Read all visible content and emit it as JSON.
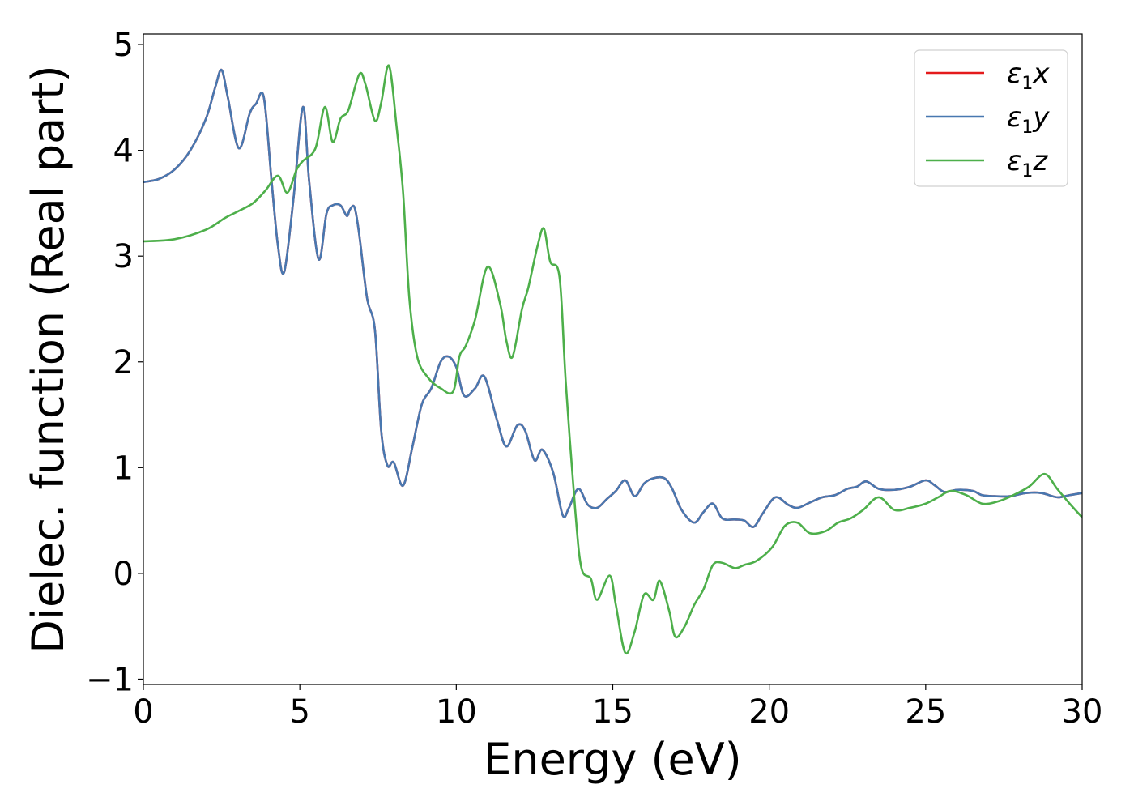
{
  "chart_data": {
    "type": "line",
    "title": "",
    "xlabel": "Energy (eV)",
    "ylabel": "Dielec. function (Real part)",
    "xlim": [
      0,
      30
    ],
    "ylim": [
      -1.05,
      5.1
    ],
    "xticks": [
      0,
      5,
      10,
      15,
      20,
      25,
      30
    ],
    "xtick_labels": [
      "0",
      "5",
      "10",
      "15",
      "20",
      "25",
      "30"
    ],
    "yticks": [
      -1,
      0,
      1,
      2,
      3,
      4,
      5
    ],
    "ytick_labels": [
      "−1",
      "0",
      "1",
      "2",
      "3",
      "4",
      "5"
    ],
    "grid": false,
    "legend_position": "top-right",
    "series": [
      {
        "name": "ε1x",
        "name_parts": [
          "ε",
          "1",
          "x"
        ],
        "color": "#e41a1c",
        "x": [
          0,
          0.5,
          1,
          1.5,
          2,
          2.3,
          2.5,
          2.7,
          3.05,
          3.4,
          3.6,
          3.85,
          4.1,
          4.3,
          4.5,
          4.8,
          5.1,
          5.3,
          5.6,
          5.85,
          6.05,
          6.3,
          6.5,
          6.6,
          6.75,
          6.9,
          7.15,
          7.4,
          7.6,
          7.8,
          8.0,
          8.3,
          8.6,
          8.9,
          9.2,
          9.5,
          9.75,
          10.0,
          10.25,
          10.6,
          10.9,
          11.3,
          11.6,
          11.95,
          12.2,
          12.5,
          12.75,
          13.1,
          13.4,
          13.6,
          13.9,
          14.2,
          14.5,
          14.8,
          15.1,
          15.4,
          15.7,
          16.0,
          16.3,
          16.65,
          16.9,
          17.2,
          17.6,
          17.9,
          18.2,
          18.5,
          18.9,
          19.2,
          19.5,
          19.8,
          20.2,
          20.6,
          20.9,
          21.3,
          21.7,
          22.1,
          22.5,
          22.8,
          23.1,
          23.5,
          24.0,
          24.5,
          25.0,
          25.3,
          25.6,
          26.0,
          26.5,
          26.8,
          27.2,
          27.7,
          28.2,
          28.7,
          29.2,
          29.6,
          30.0
        ],
        "values": [
          3.7,
          3.73,
          3.82,
          4.0,
          4.3,
          4.6,
          4.76,
          4.5,
          4.02,
          4.35,
          4.44,
          4.5,
          3.7,
          3.1,
          2.85,
          3.55,
          4.41,
          3.7,
          2.97,
          3.4,
          3.48,
          3.48,
          3.38,
          3.44,
          3.46,
          3.2,
          2.6,
          2.3,
          1.35,
          1.02,
          1.05,
          0.83,
          1.2,
          1.6,
          1.75,
          2.0,
          2.05,
          1.95,
          1.68,
          1.75,
          1.86,
          1.45,
          1.2,
          1.4,
          1.35,
          1.07,
          1.17,
          0.95,
          0.55,
          0.62,
          0.8,
          0.65,
          0.62,
          0.7,
          0.78,
          0.88,
          0.73,
          0.85,
          0.9,
          0.9,
          0.8,
          0.6,
          0.48,
          0.58,
          0.66,
          0.52,
          0.51,
          0.5,
          0.44,
          0.57,
          0.72,
          0.65,
          0.62,
          0.67,
          0.72,
          0.74,
          0.8,
          0.82,
          0.87,
          0.8,
          0.79,
          0.82,
          0.88,
          0.83,
          0.77,
          0.79,
          0.78,
          0.74,
          0.73,
          0.73,
          0.76,
          0.76,
          0.72,
          0.74,
          0.76
        ]
      },
      {
        "name": "ε1y",
        "name_parts": [
          "ε",
          "1",
          "y"
        ],
        "color": "#4878b0",
        "x": [
          0,
          0.5,
          1,
          1.5,
          2,
          2.3,
          2.5,
          2.7,
          3.05,
          3.4,
          3.6,
          3.85,
          4.1,
          4.3,
          4.5,
          4.8,
          5.1,
          5.3,
          5.6,
          5.85,
          6.05,
          6.3,
          6.5,
          6.6,
          6.75,
          6.9,
          7.15,
          7.4,
          7.6,
          7.8,
          8.0,
          8.3,
          8.6,
          8.9,
          9.2,
          9.5,
          9.75,
          10.0,
          10.25,
          10.6,
          10.9,
          11.3,
          11.6,
          11.95,
          12.2,
          12.5,
          12.75,
          13.1,
          13.4,
          13.6,
          13.9,
          14.2,
          14.5,
          14.8,
          15.1,
          15.4,
          15.7,
          16.0,
          16.3,
          16.65,
          16.9,
          17.2,
          17.6,
          17.9,
          18.2,
          18.5,
          18.9,
          19.2,
          19.5,
          19.8,
          20.2,
          20.6,
          20.9,
          21.3,
          21.7,
          22.1,
          22.5,
          22.8,
          23.1,
          23.5,
          24.0,
          24.5,
          25.0,
          25.3,
          25.6,
          26.0,
          26.5,
          26.8,
          27.2,
          27.7,
          28.2,
          28.7,
          29.2,
          29.6,
          30.0
        ],
        "values": [
          3.7,
          3.73,
          3.82,
          4.0,
          4.3,
          4.6,
          4.76,
          4.5,
          4.02,
          4.35,
          4.44,
          4.5,
          3.7,
          3.1,
          2.85,
          3.55,
          4.41,
          3.7,
          2.97,
          3.4,
          3.48,
          3.48,
          3.38,
          3.44,
          3.46,
          3.2,
          2.6,
          2.3,
          1.35,
          1.02,
          1.05,
          0.83,
          1.2,
          1.6,
          1.75,
          2.0,
          2.05,
          1.95,
          1.68,
          1.75,
          1.86,
          1.45,
          1.2,
          1.4,
          1.35,
          1.07,
          1.17,
          0.95,
          0.55,
          0.62,
          0.8,
          0.65,
          0.62,
          0.7,
          0.78,
          0.88,
          0.73,
          0.85,
          0.9,
          0.9,
          0.8,
          0.6,
          0.48,
          0.58,
          0.66,
          0.52,
          0.51,
          0.5,
          0.44,
          0.57,
          0.72,
          0.65,
          0.62,
          0.67,
          0.72,
          0.74,
          0.8,
          0.82,
          0.87,
          0.8,
          0.79,
          0.82,
          0.88,
          0.83,
          0.77,
          0.79,
          0.78,
          0.74,
          0.73,
          0.73,
          0.76,
          0.76,
          0.72,
          0.74,
          0.76
        ]
      },
      {
        "name": "ε1z",
        "name_parts": [
          "ε",
          "1",
          "z"
        ],
        "color": "#4daf4a",
        "x": [
          0,
          1,
          2,
          2.6,
          3.0,
          3.5,
          3.9,
          4.3,
          4.6,
          4.9,
          5.1,
          5.5,
          5.8,
          6.05,
          6.3,
          6.55,
          6.9,
          7.1,
          7.4,
          7.6,
          7.85,
          8.1,
          8.3,
          8.5,
          8.75,
          9.1,
          9.5,
          9.9,
          10.1,
          10.3,
          10.6,
          11.0,
          11.4,
          11.6,
          11.8,
          12.1,
          12.3,
          12.6,
          12.8,
          13.0,
          13.3,
          13.5,
          13.8,
          14.0,
          14.3,
          14.5,
          14.9,
          15.1,
          15.4,
          15.7,
          16.0,
          16.3,
          16.5,
          16.8,
          17.0,
          17.3,
          17.6,
          17.9,
          18.2,
          18.5,
          18.9,
          19.2,
          19.6,
          20.1,
          20.5,
          20.9,
          21.3,
          21.8,
          22.2,
          22.6,
          23.0,
          23.5,
          24.0,
          24.5,
          25.0,
          25.4,
          25.8,
          26.3,
          26.8,
          27.3,
          27.8,
          28.3,
          28.8,
          29.2,
          29.6,
          30.0
        ],
        "values": [
          3.14,
          3.16,
          3.25,
          3.36,
          3.42,
          3.5,
          3.62,
          3.76,
          3.6,
          3.82,
          3.9,
          4.02,
          4.41,
          4.08,
          4.3,
          4.38,
          4.72,
          4.62,
          4.28,
          4.45,
          4.8,
          4.2,
          3.6,
          2.6,
          2.05,
          1.85,
          1.75,
          1.72,
          2.05,
          2.15,
          2.4,
          2.9,
          2.55,
          2.2,
          2.05,
          2.5,
          2.7,
          3.1,
          3.26,
          2.95,
          2.8,
          1.8,
          0.6,
          0.05,
          -0.05,
          -0.25,
          -0.02,
          -0.3,
          -0.75,
          -0.55,
          -0.2,
          -0.25,
          -0.07,
          -0.35,
          -0.6,
          -0.5,
          -0.3,
          -0.15,
          0.08,
          0.1,
          0.05,
          0.08,
          0.12,
          0.25,
          0.45,
          0.48,
          0.38,
          0.4,
          0.48,
          0.52,
          0.6,
          0.72,
          0.6,
          0.62,
          0.66,
          0.72,
          0.78,
          0.74,
          0.66,
          0.68,
          0.74,
          0.82,
          0.94,
          0.8,
          0.66,
          0.53
        ]
      }
    ]
  }
}
